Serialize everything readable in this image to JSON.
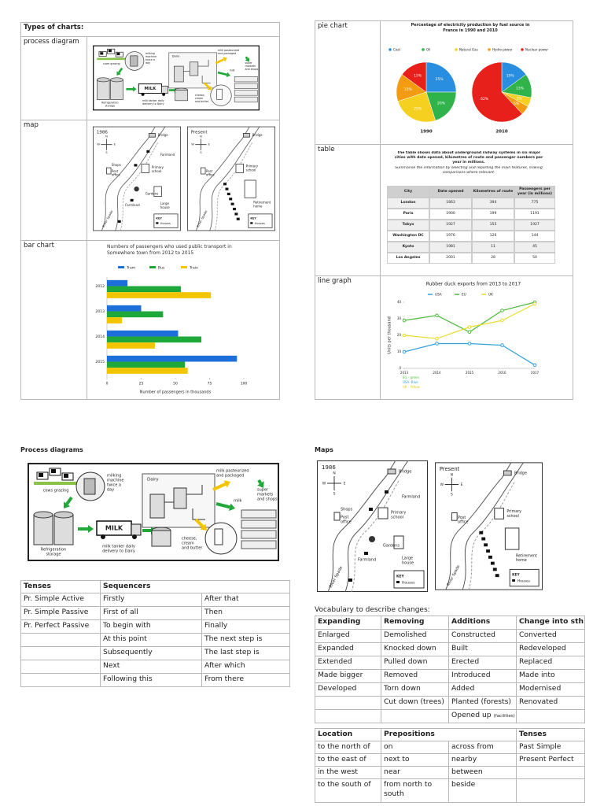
{
  "top_left": {
    "title": "Types of charts:",
    "rows": [
      "process diagram",
      "map",
      "bar chart"
    ]
  },
  "top_right": {
    "rows": [
      "pie chart",
      "table",
      "line graph"
    ]
  },
  "process_diagram": {
    "heading": "Process diagrams",
    "labels": {
      "cows": [
        "cows grazing"
      ],
      "milking": [
        "milking",
        "machine",
        "twice a",
        "day"
      ],
      "dairy": [
        "Dairy"
      ],
      "pasteurized": [
        "milk pasteurized",
        "and packaged"
      ],
      "milk": [
        "milk"
      ],
      "shops": [
        "super",
        "markets",
        "and shops"
      ],
      "storage": [
        "Refrigeration",
        "storage"
      ],
      "tanker_sign": [
        "MILK"
      ],
      "tanker": [
        "milk tanker daily",
        "delivery to Dairy"
      ],
      "products": [
        "cheese,",
        "cream",
        "and butter"
      ]
    }
  },
  "maps": {
    "heading": "Maps",
    "past": {
      "title": "1986",
      "compass": [
        "N",
        "E",
        "S",
        "W"
      ],
      "labels": {
        "bridge": [
          "Bridge"
        ],
        "farmland": [
          "Farmland"
        ],
        "shops": [
          "Shops"
        ],
        "post": [
          "Post",
          "office"
        ],
        "school": [
          "Primary",
          "school"
        ],
        "gardens": [
          "Gardens"
        ],
        "farmland2": [
          "Farmland"
        ],
        "house": [
          "Large",
          "house"
        ],
        "river": [
          "River Spade"
        ]
      },
      "key": "KEY",
      "houses": "Houses"
    },
    "present": {
      "title": "Present",
      "compass": [
        "N",
        "E",
        "S",
        "W"
      ],
      "labels": {
        "bridge": [
          "Bridge"
        ],
        "post": [
          "Post",
          "office"
        ],
        "school": [
          "Primary",
          "school"
        ],
        "retirement": [
          "Retirement",
          "home"
        ],
        "river": [
          "River Spade"
        ]
      },
      "key": "KEY",
      "houses": "Houses"
    }
  },
  "chart_data": [
    {
      "type": "bar",
      "orientation": "horizontal",
      "title": "Numbers of passengers who used public transport in Somewhere town from 2012 to 2015",
      "categories": [
        "2012",
        "2013",
        "2014",
        "2015"
      ],
      "series": [
        {
          "name": "Tram",
          "color": "#1e6fd9",
          "values": [
            15,
            25,
            52,
            95
          ]
        },
        {
          "name": "Bus",
          "color": "#1fa83a",
          "values": [
            54,
            41,
            69,
            57
          ]
        },
        {
          "name": "Train",
          "color": "#f2c500",
          "values": [
            76,
            11,
            35,
            59
          ]
        }
      ],
      "xlim": [
        0,
        100
      ],
      "xticks": [
        0,
        25,
        50,
        75,
        100
      ],
      "xlabel": "Number of passengers in thousands",
      "grid": false
    },
    {
      "type": "pie",
      "title": "Percentage of electricity production by fuel source in France in 1990 and 2010",
      "categories": [
        "Coal",
        "Oil",
        "Natural Gas",
        "Hydro power",
        "Nuclear power"
      ],
      "colors": [
        "#2a8ee0",
        "#2fb34a",
        "#f5d020",
        "#f39c12",
        "#e8201c"
      ],
      "series": [
        {
          "name": "1990",
          "values": [
            25,
            20,
            25,
            15,
            15
          ],
          "value_labels": [
            "25%",
            "20%",
            "25%",
            "15%",
            "15%"
          ]
        },
        {
          "name": "2010",
          "values": [
            15,
            13,
            5,
            5,
            62
          ],
          "value_labels": [
            "15%",
            "13%",
            "5%",
            "5%",
            "62%"
          ]
        }
      ]
    },
    {
      "type": "line",
      "title": "Rubber duck exports from 2013 to 2017",
      "categories": [
        "2013",
        "2014",
        "2015",
        "2016",
        "2017"
      ],
      "series": [
        {
          "name": "USA",
          "color": "#33a1e0",
          "values": [
            10,
            15,
            15,
            14,
            2
          ]
        },
        {
          "name": "EU",
          "color": "#4cbb3c",
          "values": [
            29,
            32,
            22,
            35,
            40
          ]
        },
        {
          "name": "UK",
          "color": "#e8dc2a",
          "values": [
            20,
            18,
            25,
            29,
            39
          ]
        }
      ],
      "ylim": [
        0,
        40
      ],
      "yticks": [
        0,
        10,
        20,
        30,
        40
      ],
      "ylabel": "Units per thousand",
      "notes": [
        "EU - green",
        "USA- Blue",
        "UK - Yellow"
      ],
      "grid": false
    }
  ],
  "data_table": {
    "intro": "The table shows data about underground railway systems in six major cities with date opened, kilometres of route and passenger numbers per year in millions.",
    "instruction": "Summarise the information by selecting and reporting the main features, making comparisons where relevant.",
    "header": [
      "City",
      "Date opened",
      "Kilometres of route",
      "Passengers per year (in millions)"
    ],
    "rows": [
      [
        "London",
        1863,
        394,
        775
      ],
      [
        "Paris",
        1900,
        199,
        1191
      ],
      [
        "Tokyo",
        1927,
        155,
        1927
      ],
      [
        "Washington DC",
        1976,
        126,
        144
      ],
      [
        "Kyoto",
        1981,
        11,
        45
      ],
      [
        "Los Angeles",
        2001,
        28,
        50
      ]
    ]
  },
  "tenses_table": {
    "header": [
      "Tenses",
      "Sequencers"
    ],
    "rows": [
      [
        "Pr. Simple Active",
        "Firstly",
        "After that"
      ],
      [
        "Pr. Simple Passive",
        "First of all",
        "Then"
      ],
      [
        "Pr. Perfect Passive",
        "To begin with",
        "Finally"
      ],
      [
        null,
        "At this point",
        "The next step is"
      ],
      [
        null,
        "Subsequently",
        "The last step is"
      ],
      [
        null,
        "Next",
        "After which"
      ],
      [
        null,
        "Following this",
        "From there"
      ]
    ]
  },
  "vocabulary": {
    "title": "Vocabulary to describe changes:",
    "header": [
      "Expanding",
      "Removing",
      "Additions",
      "Change into sth"
    ],
    "rows": [
      [
        "Enlarged",
        "Demolished",
        "Constructed",
        "Converted"
      ],
      [
        "Expanded",
        "Knocked down",
        "Built",
        "Redeveloped"
      ],
      [
        "Extended",
        "Pulled down",
        "Erected",
        "Replaced"
      ],
      [
        "Made bigger",
        "Removed",
        "Introduced",
        "Made into"
      ],
      [
        "Developed",
        "Torn down",
        "Added",
        "Modernised"
      ],
      [
        null,
        "Cut down (trees)",
        "Planted (forests)",
        "Renovated"
      ],
      [
        null,
        null,
        {
          "text": "Opened up",
          "note": "(facilities)"
        },
        null
      ]
    ]
  },
  "location_table": {
    "header": [
      "Location",
      "Prepositions",
      "Tenses"
    ],
    "rows": [
      [
        "to the north of",
        "on",
        "across from",
        "Past Simple"
      ],
      [
        "to the east of",
        "next to",
        "nearby",
        "Present Perfect"
      ],
      [
        "in the west",
        "near",
        "between",
        null
      ],
      [
        "to the south of",
        "from north to south",
        "beside",
        null
      ]
    ]
  }
}
